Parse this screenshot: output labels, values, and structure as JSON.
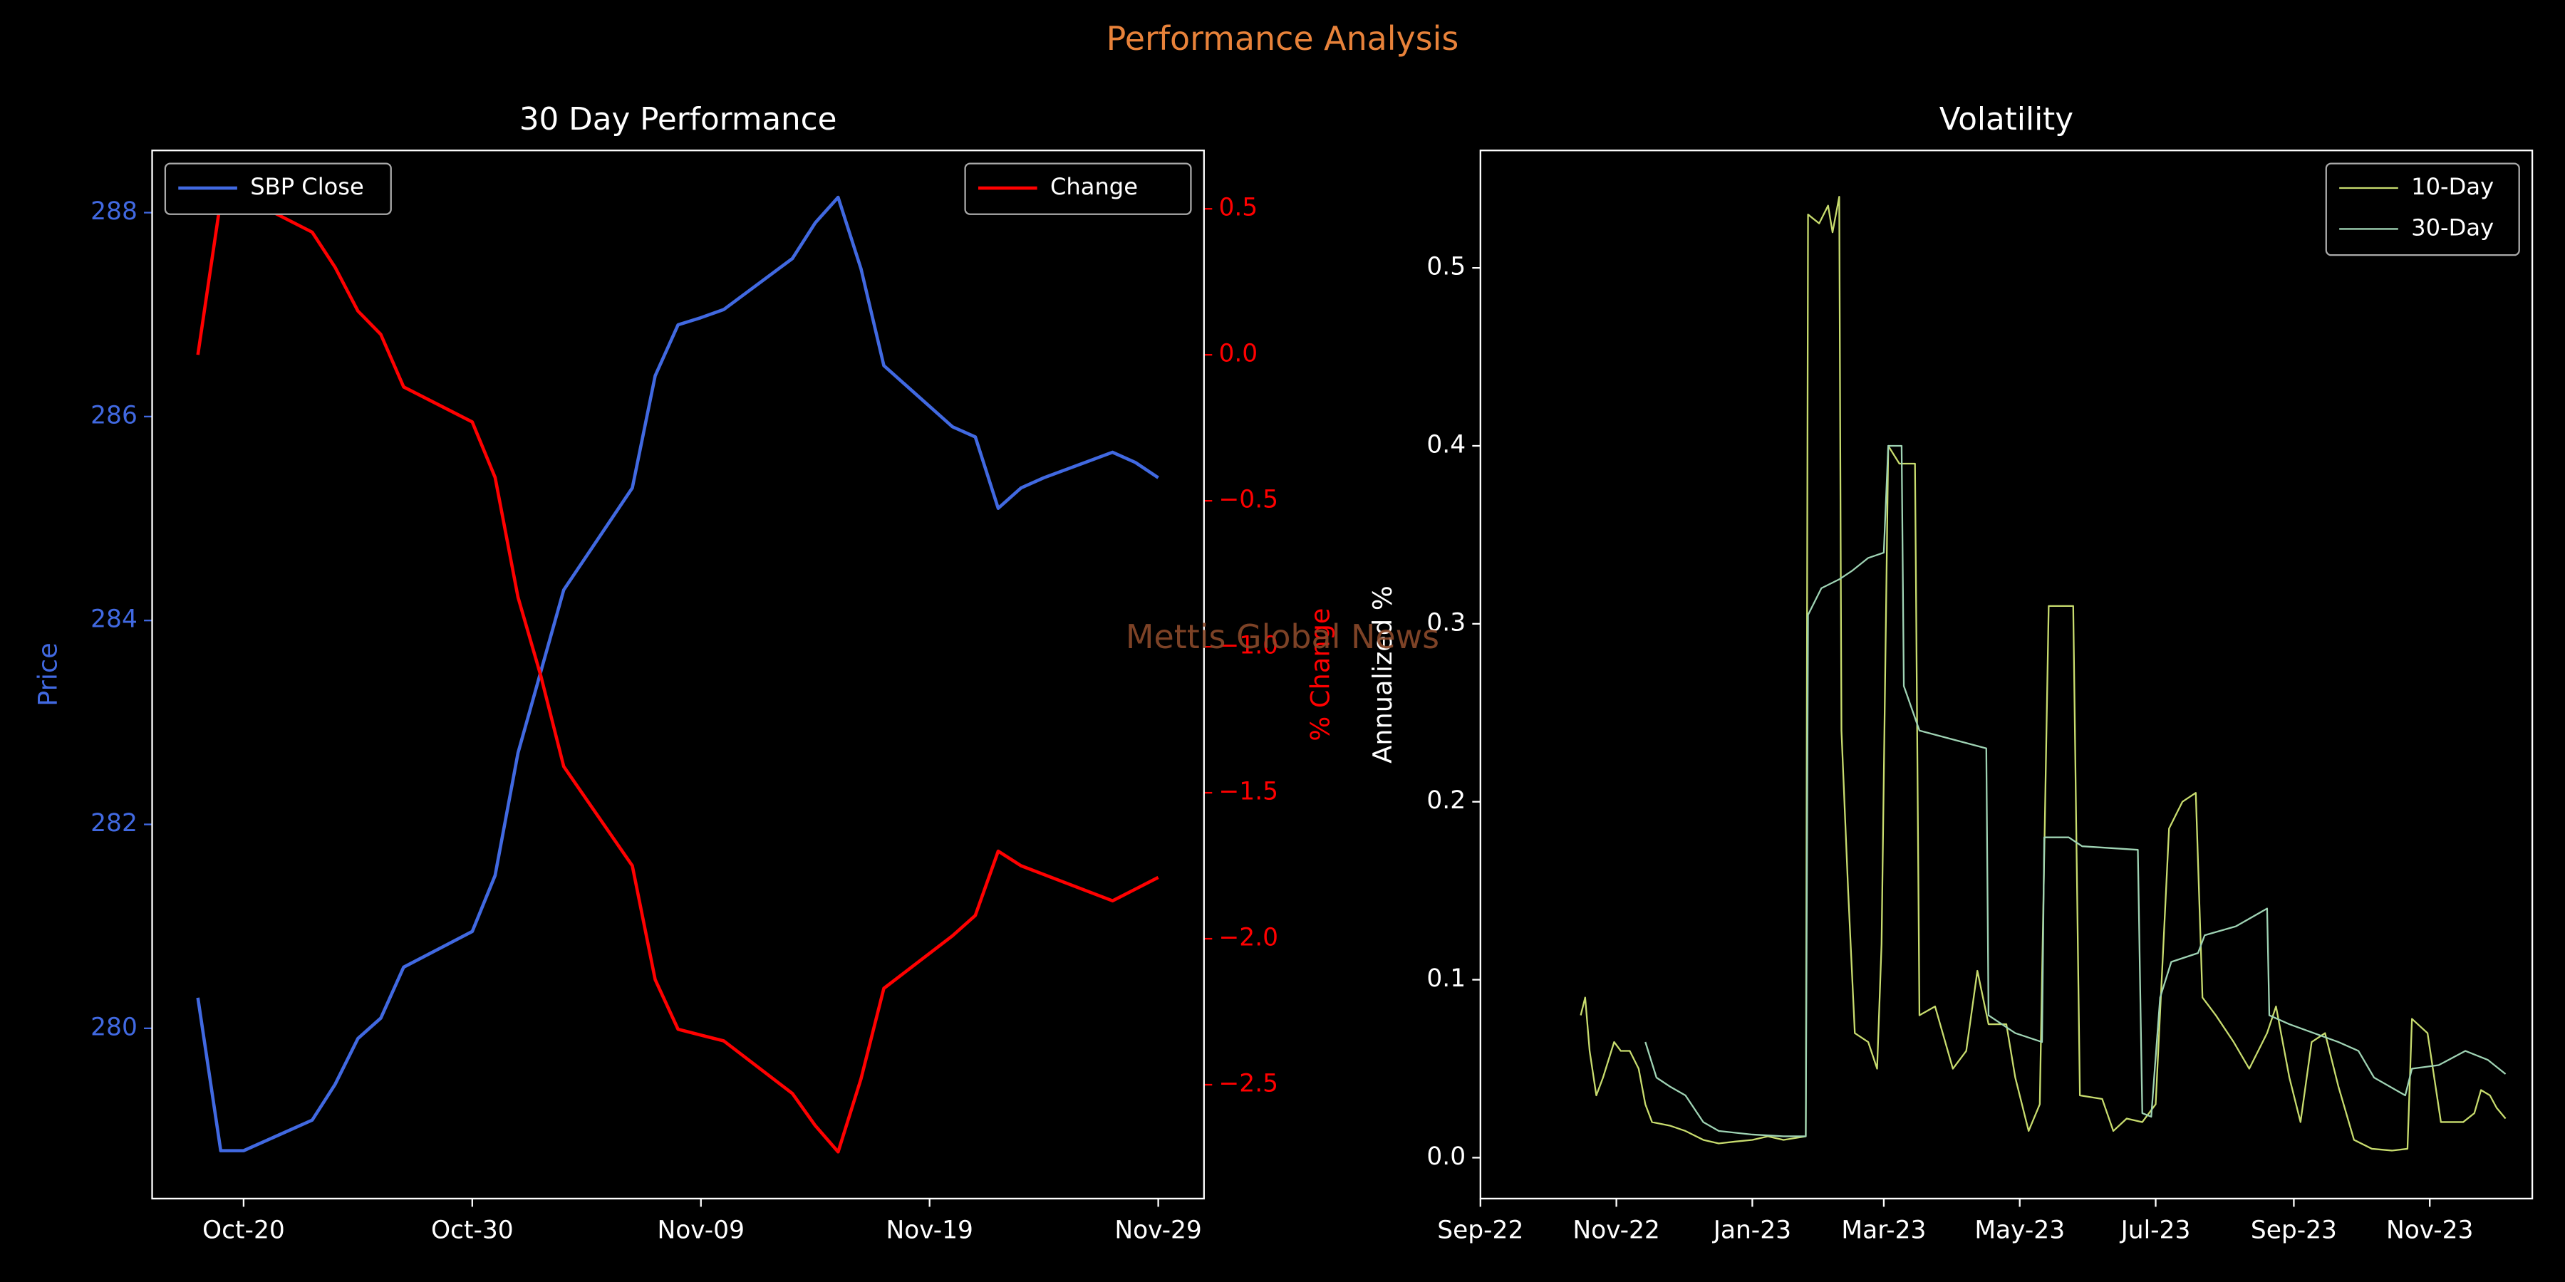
{
  "suptitle": "Performance Analysis",
  "watermark": "Mettis Global News",
  "chart_data": [
    {
      "type": "line",
      "title": "30 Day Performance",
      "ylabel": "Price",
      "y2label": "% Change",
      "x": [
        "Oct-18",
        "Oct-19",
        "Oct-20",
        "Oct-23",
        "Oct-24",
        "Oct-25",
        "Oct-26",
        "Oct-27",
        "Oct-30",
        "Oct-31",
        "Nov-01",
        "Nov-02",
        "Nov-03",
        "Nov-06",
        "Nov-07",
        "Nov-08",
        "Nov-09",
        "Nov-10",
        "Nov-13",
        "Nov-14",
        "Nov-15",
        "Nov-16",
        "Nov-17",
        "Nov-20",
        "Nov-21",
        "Nov-22",
        "Nov-23",
        "Nov-24",
        "Nov-27",
        "Nov-28",
        "Nov-29"
      ],
      "series": [
        {
          "name": "SBP Close",
          "color": "#4169e1",
          "axis": "y",
          "values": [
            280.3,
            278.8,
            278.8,
            279.1,
            279.45,
            279.9,
            280.1,
            280.6,
            280.95,
            281.5,
            282.7,
            283.5,
            284.3,
            285.3,
            286.4,
            286.9,
            286.97,
            287.05,
            287.55,
            287.9,
            288.15,
            287.45,
            286.5,
            285.9,
            285.8,
            285.1,
            285.3,
            285.4,
            285.65,
            285.55,
            285.4
          ]
        },
        {
          "name": "Change",
          "color": "#ff0000",
          "axis": "y2",
          "values": [
            0,
            0.53,
            0.54,
            0.42,
            0.3,
            0.15,
            0.07,
            -0.11,
            -0.23,
            -0.42,
            -0.83,
            -1.1,
            -1.41,
            -1.75,
            -2.14,
            -2.31,
            -2.33,
            -2.35,
            -2.53,
            -2.64,
            -2.73,
            -2.48,
            -2.17,
            -1.99,
            -1.92,
            -1.7,
            -1.75,
            -1.78,
            -1.87,
            -1.83,
            -1.79
          ]
        }
      ],
      "xlim": [
        "Oct-16",
        "Dec-01"
      ],
      "xticks": [
        "Oct-20",
        "Oct-30",
        "Nov-09",
        "Nov-19",
        "Nov-29"
      ],
      "ylim": [
        278.33,
        288.61
      ],
      "yticks": [
        280,
        282,
        284,
        286,
        288
      ],
      "y2lim": [
        -2.89,
        0.7
      ],
      "y2ticks": [
        {
          "value": -2.5,
          "label": "−2.5"
        },
        {
          "value": -2,
          "label": "−2.0"
        },
        {
          "value": -1.5,
          "label": "−1.5"
        },
        {
          "value": -1,
          "label": "−1.0"
        },
        {
          "value": -0.5,
          "label": "−0.5"
        },
        {
          "value": 0,
          "label": "0.0"
        },
        0.5
      ],
      "legend": {
        "y": "upper left",
        "y2": "upper right"
      }
    },
    {
      "type": "line",
      "title": "Volatility",
      "ylabel": "Annualized %",
      "series": [
        {
          "name": "10-Day",
          "color": "#c8dc6e",
          "axis": "y",
          "x": [
            "2022-10-16",
            "2022-10-18",
            "2022-10-20",
            "2022-10-23",
            "2022-10-26",
            "2022-10-31",
            "2022-11-03",
            "2022-11-07",
            "2022-11-11",
            "2022-11-14",
            "2022-11-17",
            "2022-11-25",
            "2022-12-02",
            "2022-12-10",
            "2022-12-17",
            "2022-12-24",
            "2023-01-01",
            "2023-01-08",
            "2023-01-15",
            "2023-01-25",
            "2023-01-26",
            "2023-01-31",
            "2023-02-04",
            "2023-02-06",
            "2023-02-09",
            "2023-02-10",
            "2023-02-13",
            "2023-02-16",
            "2023-02-22",
            "2023-02-26",
            "2023-02-28",
            "2023-03-03",
            "2023-03-08",
            "2023-03-15",
            "2023-03-17",
            "2023-03-24",
            "2023-04-01",
            "2023-04-07",
            "2023-04-12",
            "2023-04-17",
            "2023-04-25",
            "2023-04-29",
            "2023-05-05",
            "2023-05-10",
            "2023-05-14",
            "2023-05-25",
            "2023-05-28",
            "2023-06-07",
            "2023-06-12",
            "2023-06-18",
            "2023-06-25",
            "2023-07-01",
            "2023-07-07",
            "2023-07-13",
            "2023-07-19",
            "2023-07-22",
            "2023-07-28",
            "2023-08-05",
            "2023-08-12",
            "2023-08-20",
            "2023-08-24",
            "2023-08-30",
            "2023-09-04",
            "2023-09-09",
            "2023-09-15",
            "2023-09-21",
            "2023-09-28",
            "2023-10-06",
            "2023-10-15",
            "2023-10-22",
            "2023-10-24",
            "2023-10-31",
            "2023-11-06",
            "2023-11-16",
            "2023-11-21",
            "2023-11-24",
            "2023-11-28",
            "2023-12-01",
            "2023-12-05"
          ],
          "values": [
            0.08,
            0.09,
            0.06,
            0.035,
            0.045,
            0.065,
            0.06,
            0.06,
            0.05,
            0.03,
            0.02,
            0.018,
            0.015,
            0.01,
            0.008,
            0.009,
            0.01,
            0.012,
            0.01,
            0.012,
            0.53,
            0.525,
            0.535,
            0.52,
            0.54,
            0.24,
            0.15,
            0.07,
            0.065,
            0.05,
            0.12,
            0.4,
            0.39,
            0.39,
            0.08,
            0.085,
            0.05,
            0.06,
            0.105,
            0.075,
            0.075,
            0.045,
            0.015,
            0.03,
            0.31,
            0.31,
            0.035,
            0.033,
            0.015,
            0.022,
            0.02,
            0.03,
            0.185,
            0.2,
            0.205,
            0.09,
            0.08,
            0.065,
            0.05,
            0.07,
            0.085,
            0.045,
            0.02,
            0.065,
            0.07,
            0.04,
            0.01,
            0.005,
            0.004,
            0.005,
            0.078,
            0.07,
            0.02,
            0.02,
            0.025,
            0.038,
            0.035,
            0.028,
            0.022
          ]
        },
        {
          "name": "30-Day",
          "color": "#9fd3b4",
          "axis": "y",
          "x": [
            "2022-11-14",
            "2022-11-19",
            "2022-11-25",
            "2022-12-02",
            "2022-12-10",
            "2022-12-17",
            "2023-01-01",
            "2023-01-15",
            "2023-01-25",
            "2023-01-26",
            "2023-02-01",
            "2023-02-09",
            "2023-02-15",
            "2023-02-22",
            "2023-03-01",
            "2023-03-03",
            "2023-03-09",
            "2023-03-10",
            "2023-03-17",
            "2023-04-01",
            "2023-04-16",
            "2023-04-17",
            "2023-04-29",
            "2023-05-11",
            "2023-05-12",
            "2023-05-23",
            "2023-05-29",
            "2023-06-23",
            "2023-06-25",
            "2023-06-29",
            "2023-07-03",
            "2023-07-08",
            "2023-07-20",
            "2023-07-23",
            "2023-08-06",
            "2023-08-20",
            "2023-08-21",
            "2023-08-30",
            "2023-09-10",
            "2023-09-21",
            "2023-09-30",
            "2023-10-07",
            "2023-10-21",
            "2023-10-24",
            "2023-11-05",
            "2023-11-17",
            "2023-11-27",
            "2023-12-05"
          ],
          "values": [
            0.065,
            0.045,
            0.04,
            0.035,
            0.02,
            0.015,
            0.013,
            0.012,
            0.012,
            0.305,
            0.32,
            0.325,
            0.33,
            0.337,
            0.34,
            0.4,
            0.4,
            0.265,
            0.24,
            0.235,
            0.23,
            0.08,
            0.07,
            0.065,
            0.18,
            0.18,
            0.175,
            0.173,
            0.025,
            0.023,
            0.09,
            0.11,
            0.115,
            0.125,
            0.13,
            0.14,
            0.08,
            0.075,
            0.07,
            0.065,
            0.06,
            0.045,
            0.035,
            0.05,
            0.052,
            0.06,
            0.055,
            0.047
          ]
        }
      ],
      "xlim": [
        "2022-09-01",
        "2023-12-17"
      ],
      "xticks": [
        {
          "value": "2022-09-01",
          "label": "Sep-22"
        },
        {
          "value": "2022-11-01",
          "label": "Nov-22"
        },
        {
          "value": "2023-01-01",
          "label": "Jan-23"
        },
        {
          "value": "2023-03-01",
          "label": "Mar-23"
        },
        {
          "value": "2023-05-01",
          "label": "May-23"
        },
        {
          "value": "2023-07-01",
          "label": "Jul-23"
        },
        {
          "value": "2023-09-01",
          "label": "Sep-23"
        },
        {
          "value": "2023-11-01",
          "label": "Nov-23"
        }
      ],
      "ylim": [
        -0.023,
        0.566
      ],
      "yticks": [
        {
          "value": 0,
          "label": "0.0"
        },
        0.1,
        0.2,
        0.3,
        0.4,
        0.5
      ],
      "legend": {
        "y": "upper right"
      }
    }
  ]
}
